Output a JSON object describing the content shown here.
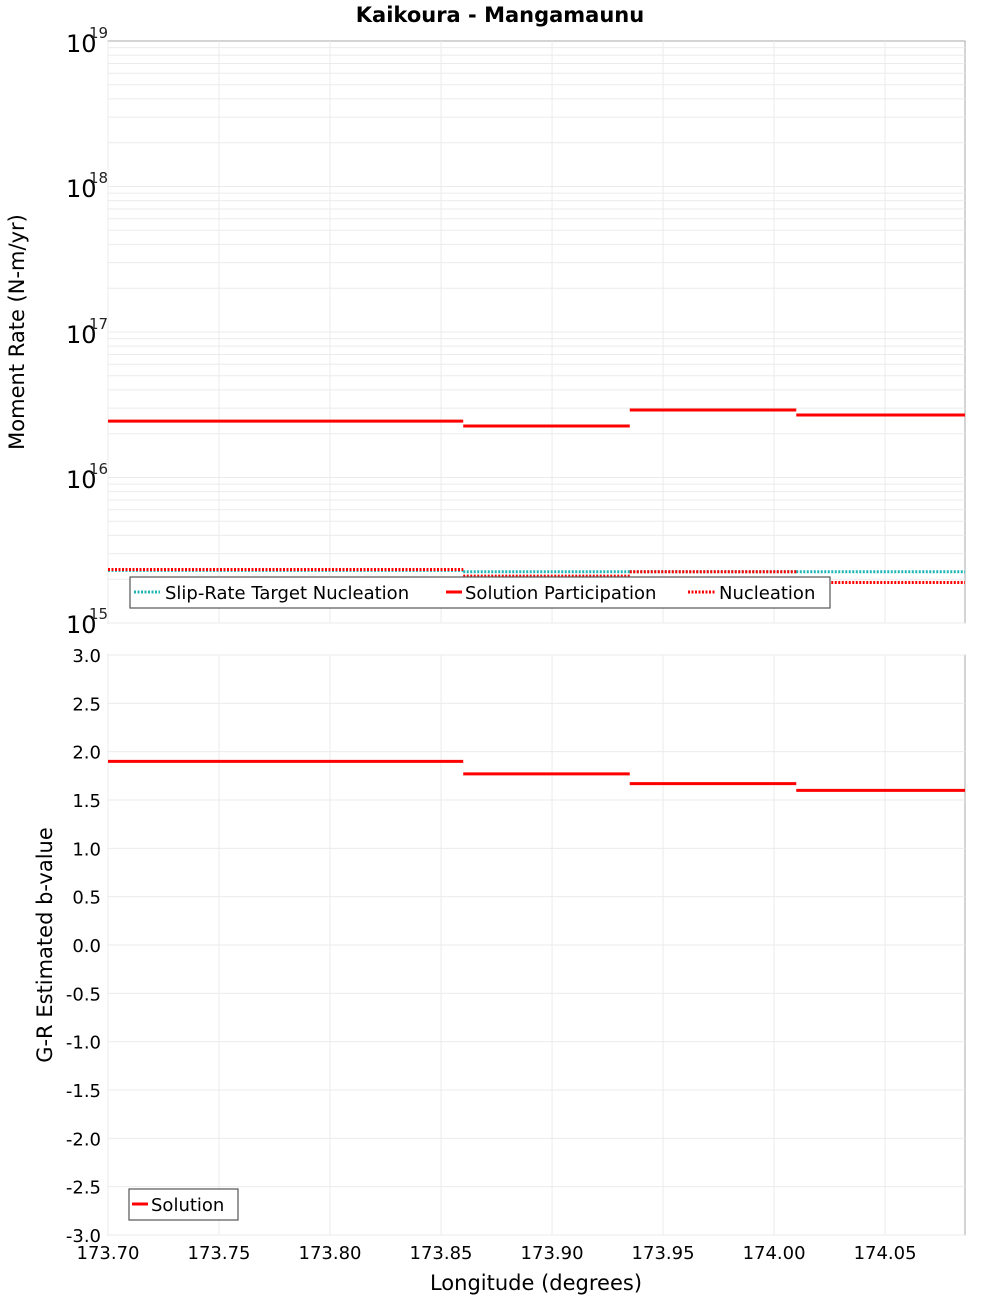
{
  "chart_data": [
    {
      "type": "line",
      "panel": "top",
      "title": "Kaikoura - Mangamaunu",
      "xlabel": "Longitude (degrees)",
      "ylabel": "Moment Rate (N-m/yr)",
      "yscale": "log",
      "ylim": [
        1000000000000000.0,
        1e+19
      ],
      "xlim": [
        173.7,
        174.086
      ],
      "ytick_labels": [
        {
          "base": "10",
          "exp": "19",
          "value": 1e+19
        },
        {
          "base": "10",
          "exp": "18",
          "value": 1e+18
        },
        {
          "base": "10",
          "exp": "17",
          "value": 1e+17
        },
        {
          "base": "10",
          "exp": "16",
          "value": 1e+16
        },
        {
          "base": "10",
          "exp": "15",
          "value": 1000000000000000.0
        }
      ],
      "grid": true,
      "legend_position": "lower-left",
      "segments_x": [
        [
          173.7,
          173.86
        ],
        [
          173.86,
          173.935
        ],
        [
          173.935,
          174.01
        ],
        [
          174.01,
          174.086
        ]
      ],
      "series": [
        {
          "name": "Slip-Rate Target Nucleation",
          "color": "#1fb5b5",
          "style": "dotted",
          "values": [
            2300000000000000.0,
            2250000000000000.0,
            2250000000000000.0,
            2250000000000000.0
          ]
        },
        {
          "name": "Solution Participation",
          "color": "#ff0000",
          "style": "solid",
          "values": [
            2.44e+16,
            2.26e+16,
            2.91e+16,
            2.69e+16
          ]
        },
        {
          "name": "Nucleation",
          "color": "#ff0000",
          "style": "dotted",
          "values": [
            2330000000000000.0,
            2100000000000000.0,
            2250000000000000.0,
            1900000000000000.0
          ]
        }
      ]
    },
    {
      "type": "line",
      "panel": "bottom",
      "title": "",
      "xlabel": "Longitude (degrees)",
      "ylabel": "G-R Estimated b-value",
      "yscale": "linear",
      "ylim": [
        -3.0,
        3.0
      ],
      "xlim": [
        173.7,
        174.086
      ],
      "ytick_labels": [
        "3.0",
        "2.5",
        "2.0",
        "1.5",
        "1.0",
        "0.5",
        "0.0",
        "-0.5",
        "-1.0",
        "-1.5",
        "-2.0",
        "-2.5",
        "-3.0"
      ],
      "xtick_labels": [
        "173.70",
        "173.75",
        "173.80",
        "173.85",
        "173.90",
        "173.95",
        "174.00",
        "174.05"
      ],
      "grid": true,
      "legend_position": "lower-left",
      "segments_x": [
        [
          173.7,
          173.86
        ],
        [
          173.86,
          173.935
        ],
        [
          173.935,
          174.01
        ],
        [
          174.01,
          174.086
        ]
      ],
      "series": [
        {
          "name": "Solution",
          "color": "#ff0000",
          "style": "solid",
          "values": [
            1.9,
            1.77,
            1.67,
            1.6
          ]
        }
      ]
    }
  ],
  "labels": {
    "title": "Kaikoura - Mangamaunu",
    "top_ylabel": "Moment Rate (N-m/yr)",
    "bottom_ylabel": "G-R Estimated b-value",
    "xlabel": "Longitude (degrees)",
    "top_legend": [
      "Slip-Rate Target Nucleation",
      "Solution Participation",
      "Nucleation"
    ],
    "bottom_legend": [
      "Solution"
    ],
    "xticks": [
      "173.70",
      "173.75",
      "173.80",
      "173.85",
      "173.90",
      "173.95",
      "174.00",
      "174.05"
    ],
    "bottom_yticks": [
      "3.0",
      "2.5",
      "2.0",
      "1.5",
      "1.0",
      "0.5",
      "0.0",
      "-0.5",
      "-1.0",
      "-1.5",
      "-2.0",
      "-2.5",
      "-3.0"
    ],
    "top_yticks_base": [
      "10",
      "10",
      "10",
      "10",
      "10"
    ],
    "top_yticks_exp": [
      "19",
      "18",
      "17",
      "16",
      "15"
    ]
  }
}
